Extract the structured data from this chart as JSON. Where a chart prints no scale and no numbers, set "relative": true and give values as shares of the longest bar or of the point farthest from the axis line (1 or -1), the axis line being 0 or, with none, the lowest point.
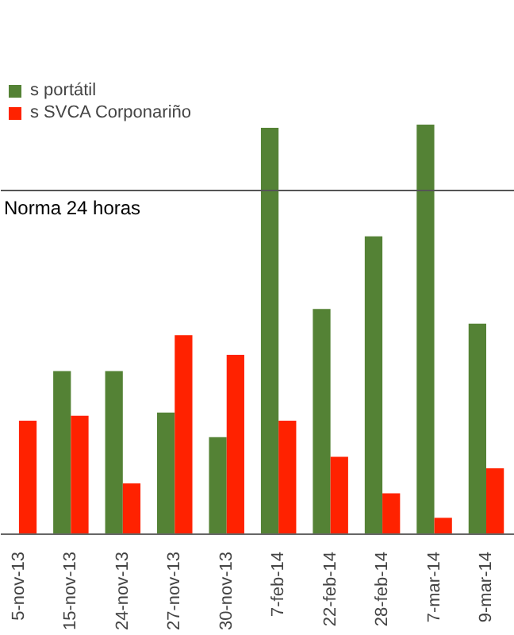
{
  "chart_data": {
    "type": "bar",
    "relative": true,
    "categories": [
      "5-nov-13",
      "15-nov-13",
      "24-nov-13",
      "27-nov-13",
      "30-nov-13",
      "7-feb-14",
      "22-feb-14",
      "28-feb-14",
      "7-mar-14",
      "9-mar-14"
    ],
    "series": [
      {
        "name": "s portátil",
        "color": "#548235",
        "values": [
          null,
          0.398,
          0.398,
          0.297,
          0.237,
          0.992,
          0.55,
          0.727,
          1,
          0.514
        ]
      },
      {
        "name": "s SVCA Corponariño",
        "color": "#ff2200",
        "values": [
          0.277,
          0.289,
          0.124,
          0.486,
          0.438,
          0.277,
          0.189,
          0.1,
          0.04,
          0.161
        ]
      }
    ],
    "ref_lines": [
      {
        "axis": "y",
        "value": 0.839,
        "label": "Norma 24 horas",
        "color": "#555555"
      }
    ],
    "legend": "top left",
    "grid": false
  }
}
